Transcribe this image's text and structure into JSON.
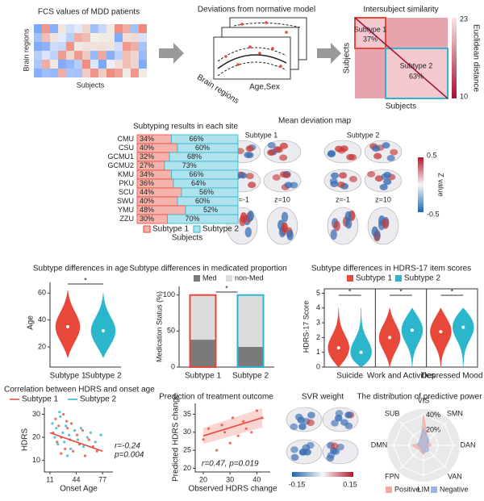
{
  "pipeline": {
    "fcs_title": "FCS values of MDD patients",
    "fcs_ylabel": "Brain regions",
    "fcs_xlabel": "Subjects",
    "deviation_title": "Deviations from normative model",
    "deviation_ylabels": [
      "FCS values",
      "FCS values",
      "FCS values"
    ],
    "deviation_xlabel": "Age,Sex",
    "deviation_depth": "Brain regions",
    "similarity_title": "Intersubject similarity",
    "similarity_ylabel": "Subjects",
    "similarity_xlabel": "Subjects",
    "subtype1": "Subtype 1",
    "subtype1_pct": "37%",
    "subtype2": "Subtype 2",
    "subtype2_pct": "63%",
    "colorbar_max": 23,
    "colorbar_min": 10,
    "colorbar_label": "Euclidean distance"
  },
  "brain_map": {
    "title": "Mean deviation map",
    "subtypes": [
      "Subtype 1",
      "Subtype 2"
    ],
    "slices": [
      "z=-1",
      "z=10",
      "z=-1",
      "z=10"
    ],
    "colorbar_max": 0.5,
    "colorbar_min": -0.5,
    "colorbar_label": "Z value"
  },
  "svr_weight": {
    "title": "SVR weight",
    "colorbar_min": -0.15,
    "colorbar_max": 0.15
  },
  "chart_data": [
    {
      "type": "stacked_barh",
      "title": "Subtyping results in each site",
      "xlabel": "Subjects",
      "categories": [
        "CMU",
        "CSU",
        "GCMU1",
        "GCMU2",
        "KMU",
        "PKU",
        "SCU",
        "SWU",
        "YMU",
        "ZZU"
      ],
      "xlim": [
        0,
        100
      ],
      "series": [
        {
          "name": "Subtype 1",
          "color": "#f6b3ac",
          "edgecolor": "#e8483a",
          "values": [
            34,
            40,
            32,
            27,
            34,
            36,
            44,
            40,
            48,
            30
          ],
          "value_labels": [
            "34%",
            "40%",
            "32%",
            "27%",
            "34%",
            "36%",
            "44%",
            "40%",
            "48%",
            "30%"
          ]
        },
        {
          "name": "Subtype 2",
          "color": "#aee2ec",
          "edgecolor": "#2bb6cc",
          "values": [
            66,
            60,
            68,
            73,
            66,
            64,
            56,
            60,
            52,
            70
          ],
          "value_labels": [
            "66%",
            "60%",
            "68%",
            "73%",
            "66%",
            "64%",
            "56%",
            "60%",
            "52%",
            "70%"
          ]
        }
      ]
    },
    {
      "type": "violin",
      "title": "Subtype differences in age",
      "ylabel": "Age",
      "categories": [
        "Subtype 1",
        "Subtype 2"
      ],
      "values": [
        35,
        32
      ],
      "ranges": [
        [
          12,
          62
        ],
        [
          12,
          60
        ]
      ],
      "colors": [
        "#e8483a",
        "#2bb6cc"
      ],
      "ylim": [
        5,
        68
      ],
      "yticks": [
        20,
        40,
        60
      ],
      "annotations": [
        "*"
      ]
    },
    {
      "type": "stacked_bar",
      "title": "Subtype differences in medicated proportion",
      "ylabel": "Medication Status (%)",
      "categories": [
        "Subtype 1",
        "Subtype 2"
      ],
      "edgecolors": [
        "#e8483a",
        "#2bb6cc"
      ],
      "series": [
        {
          "name": "Med",
          "color": "#7a7a7a",
          "values": [
            38,
            28
          ]
        },
        {
          "name": "non-Med",
          "color": "#dcdcdc",
          "values": [
            62,
            72
          ]
        }
      ],
      "ylim": [
        0,
        112
      ],
      "yticks": [
        0,
        50,
        100
      ],
      "annotations": [
        "*"
      ]
    },
    {
      "type": "grouped_violin",
      "title": "Subtype differences in HDRS-17 item scores",
      "ylabel": "HDRS-17 Score",
      "categories": [
        "Suicide",
        "Work and Activities",
        "Depressed Mood"
      ],
      "series": [
        {
          "name": "Subtype 1",
          "color": "#e8483a",
          "values": [
            1.3,
            2.0,
            2.4
          ],
          "ranges": [
            [
              0,
              4
            ],
            [
              0,
              4
            ],
            [
              0,
              4
            ]
          ]
        },
        {
          "name": "Subtype 2",
          "color": "#2bb6cc",
          "values": [
            1.0,
            2.5,
            2.7
          ],
          "ranges": [
            [
              0,
              4
            ],
            [
              0,
              4
            ],
            [
              0,
              4
            ]
          ]
        }
      ],
      "ylim": [
        0,
        5.3
      ],
      "yticks": [
        0,
        1,
        2,
        3,
        4,
        5
      ],
      "annotations": [
        "*",
        "*",
        "*"
      ]
    },
    {
      "type": "scatter",
      "title": "Correlation between HDRS and onset age",
      "xlabel": "Onset Age",
      "ylabel": "HDRS",
      "xlim": [
        4,
        90
      ],
      "xticks": [
        11,
        44,
        77
      ],
      "ylim": [
        5,
        33
      ],
      "yticks": [
        10,
        20,
        30
      ],
      "series": [
        {
          "name": "Subtype 1",
          "color": "#e8483a",
          "x": [
            15,
            18,
            20,
            22,
            25,
            28,
            30,
            33,
            36,
            38,
            40,
            45,
            48,
            52,
            55,
            60,
            65,
            70,
            25,
            32
          ],
          "values": [
            22,
            28,
            18,
            25,
            20,
            30,
            15,
            24,
            19,
            26,
            14,
            21,
            17,
            23,
            12,
            19,
            16,
            14,
            13,
            27
          ]
        },
        {
          "name": "Subtype 2",
          "color": "#2bb6cc",
          "x": [
            14,
            17,
            19,
            21,
            24,
            27,
            29,
            31,
            35,
            37,
            42,
            46,
            50,
            53,
            58,
            62,
            68,
            75,
            23,
            33
          ],
          "values": [
            26,
            20,
            24,
            17,
            29,
            22,
            18,
            25,
            21,
            15,
            23,
            19,
            24,
            16,
            20,
            22,
            18,
            21,
            31,
            12
          ]
        }
      ],
      "fit": {
        "color": "#e8483a",
        "x": [
          11,
          77
        ],
        "values": [
          22,
          14
        ]
      },
      "annotations": [
        "r=-0.24",
        "p=0.004"
      ],
      "annotation_color": "#e8483a"
    },
    {
      "type": "scatter",
      "title": "Prediction of treatment outcome",
      "xlabel": "Observed HDRS change",
      "ylabel": "Predicted HDRS change",
      "xlim": [
        17,
        45
      ],
      "xticks": [
        20,
        30,
        40
      ],
      "ylim": [
        19,
        38
      ],
      "yticks": [
        20,
        25,
        30,
        35
      ],
      "series": [
        {
          "color": "#e8483a",
          "x": [
            20,
            22,
            25,
            27,
            28,
            30,
            31,
            33,
            35,
            36,
            38,
            40,
            42
          ],
          "values": [
            28,
            31,
            25,
            32,
            30,
            27,
            34,
            29,
            33,
            31,
            30,
            36,
            34
          ]
        }
      ],
      "fit": {
        "color": "#e8483a",
        "x": [
          20,
          42
        ],
        "values": [
          29,
          34
        ]
      },
      "annotations": [
        "r=0.47, p=0.019"
      ],
      "annotation_color": "#222"
    },
    {
      "type": "radar",
      "title": "The distribution of predictive power",
      "categories": [
        "VIS",
        "SMN",
        "DAN",
        "VAN",
        "LIM",
        "FPN",
        "DMN",
        "SUB"
      ],
      "rlim": [
        0,
        45
      ],
      "rticks": [
        {
          "value": 20,
          "label": "20%"
        },
        {
          "value": 40,
          "label": "40%"
        }
      ],
      "series": [
        {
          "name": "Positive",
          "color": "#f4a6a0",
          "values": [
            40,
            8,
            10,
            5,
            12,
            8,
            15,
            5
          ]
        },
        {
          "name": "Negative",
          "color": "#9db3e0",
          "values": [
            22,
            10,
            5,
            10,
            10,
            5,
            8,
            8
          ]
        }
      ]
    }
  ]
}
